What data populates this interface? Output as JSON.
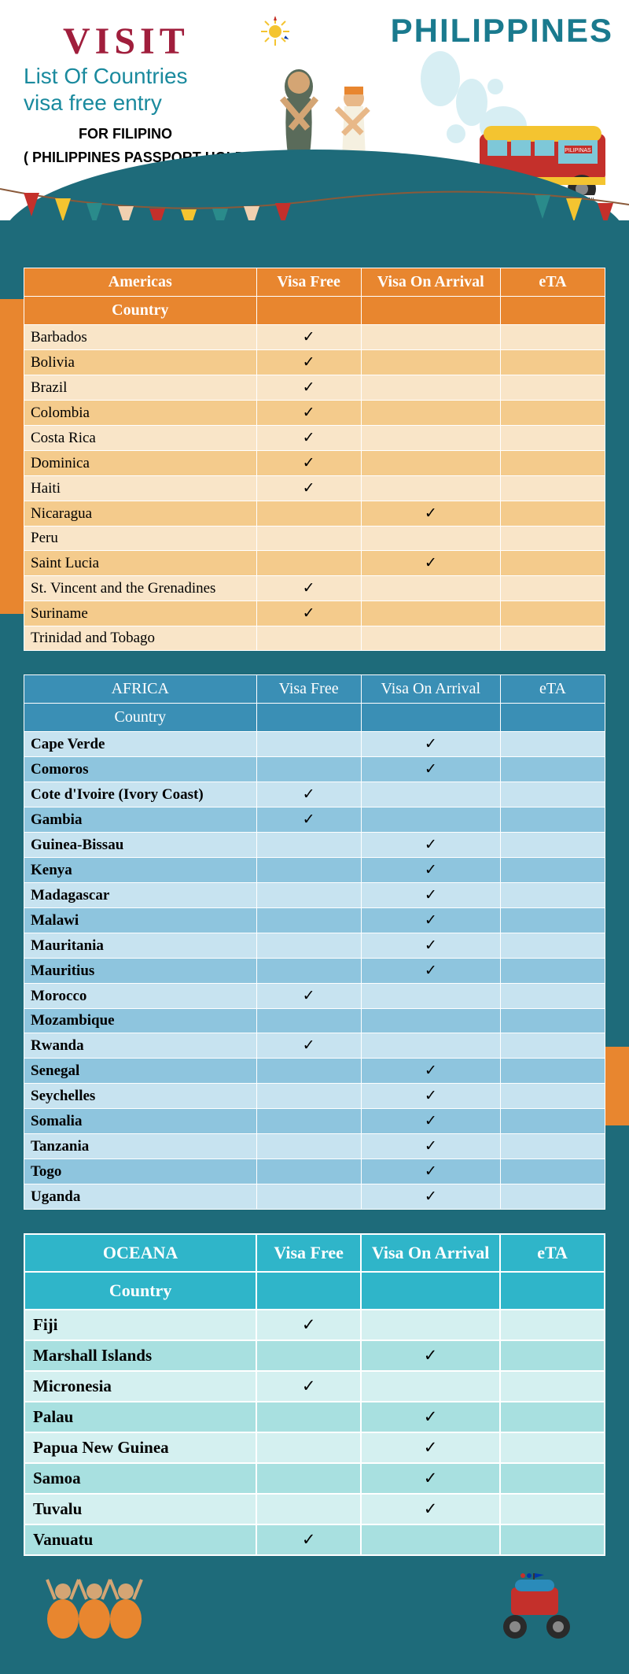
{
  "header": {
    "visit": "VISIT",
    "subtitle_line1": "List Of Countries",
    "subtitle_line2": "visa free entry",
    "for_filipino": "FOR FILIPINO",
    "passport_holder": "( PHILIPPINES PASSPORT HOLDER)",
    "philippines": "PHILIPPINES"
  },
  "columns": {
    "visa_free": "Visa Free",
    "visa_on_arrival": "Visa On Arrival",
    "eta": "eTA",
    "country": "Country"
  },
  "check": "✓",
  "tables": {
    "americas": {
      "title": "Americas",
      "rows": [
        {
          "c": "Barbados",
          "vf": true,
          "voa": false,
          "eta": false
        },
        {
          "c": "Bolivia",
          "vf": true,
          "voa": false,
          "eta": false
        },
        {
          "c": "Brazil",
          "vf": true,
          "voa": false,
          "eta": false
        },
        {
          "c": "Colombia",
          "vf": true,
          "voa": false,
          "eta": false
        },
        {
          "c": "Costa Rica",
          "vf": true,
          "voa": false,
          "eta": false
        },
        {
          "c": "Dominica",
          "vf": true,
          "voa": false,
          "eta": false
        },
        {
          "c": "Haiti",
          "vf": true,
          "voa": false,
          "eta": false
        },
        {
          "c": "Nicaragua",
          "vf": false,
          "voa": true,
          "eta": false
        },
        {
          "c": "Peru",
          "vf": false,
          "voa": false,
          "eta": false
        },
        {
          "c": "Saint Lucia",
          "vf": false,
          "voa": true,
          "eta": false
        },
        {
          "c": "St. Vincent and the Grenadines",
          "vf": true,
          "voa": false,
          "eta": false
        },
        {
          "c": "Suriname",
          "vf": true,
          "voa": false,
          "eta": false
        },
        {
          "c": "Trinidad and Tobago",
          "vf": false,
          "voa": false,
          "eta": false
        }
      ]
    },
    "africa": {
      "title": "AFRICA",
      "rows": [
        {
          "c": "Cape Verde",
          "vf": false,
          "voa": true,
          "eta": false
        },
        {
          "c": "Comoros",
          "vf": false,
          "voa": true,
          "eta": false
        },
        {
          "c": "Cote d'Ivoire (Ivory Coast)",
          "vf": true,
          "voa": false,
          "eta": false
        },
        {
          "c": "Gambia",
          "vf": true,
          "voa": false,
          "eta": false
        },
        {
          "c": "Guinea-Bissau",
          "vf": false,
          "voa": true,
          "eta": false
        },
        {
          "c": "Kenya",
          "vf": false,
          "voa": true,
          "eta": false
        },
        {
          "c": "Madagascar",
          "vf": false,
          "voa": true,
          "eta": false
        },
        {
          "c": "Malawi",
          "vf": false,
          "voa": true,
          "eta": false
        },
        {
          "c": "Mauritania",
          "vf": false,
          "voa": true,
          "eta": false
        },
        {
          "c": "Mauritius",
          "vf": false,
          "voa": true,
          "eta": false
        },
        {
          "c": "Morocco",
          "vf": true,
          "voa": false,
          "eta": false
        },
        {
          "c": "Mozambique",
          "vf": false,
          "voa": false,
          "eta": false
        },
        {
          "c": "Rwanda",
          "vf": true,
          "voa": false,
          "eta": false
        },
        {
          "c": "Senegal",
          "vf": false,
          "voa": true,
          "eta": false
        },
        {
          "c": "Seychelles",
          "vf": false,
          "voa": true,
          "eta": false
        },
        {
          "c": "Somalia",
          "vf": false,
          "voa": true,
          "eta": false
        },
        {
          "c": "Tanzania",
          "vf": false,
          "voa": true,
          "eta": false
        },
        {
          "c": "Togo",
          "vf": false,
          "voa": true,
          "eta": false
        },
        {
          "c": "Uganda",
          "vf": false,
          "voa": true,
          "eta": false
        }
      ]
    },
    "oceana": {
      "title": "OCEANA",
      "rows": [
        {
          "c": "Fiji",
          "vf": true,
          "voa": false,
          "eta": false
        },
        {
          "c": "Marshall Islands",
          "vf": false,
          "voa": true,
          "eta": false
        },
        {
          "c": "Micronesia",
          "vf": true,
          "voa": false,
          "eta": false
        },
        {
          "c": "Palau",
          "vf": false,
          "voa": true,
          "eta": false
        },
        {
          "c": "Papua New Guinea",
          "vf": false,
          "voa": true,
          "eta": false
        },
        {
          "c": "Samoa",
          "vf": false,
          "voa": true,
          "eta": false
        },
        {
          "c": "Tuvalu",
          "vf": false,
          "voa": true,
          "eta": false
        },
        {
          "c": "Vanuatu",
          "vf": true,
          "voa": false,
          "eta": false
        }
      ]
    }
  },
  "colors": {
    "page_bg": "#1e6b7a",
    "americas_header": "#e8862f",
    "americas_row_light": "#f9e5c8",
    "americas_row_dark": "#f4cb8c",
    "africa_header": "#3a8fb5",
    "africa_row_light": "#c7e3f0",
    "africa_row_dark": "#8ec5de",
    "oceana_header": "#2fb5c9",
    "oceana_row_light": "#d4f0f0",
    "oceana_row_dark": "#a8e0e0",
    "visit_color": "#a01e3c",
    "subtitle_color": "#1a8a9e"
  }
}
